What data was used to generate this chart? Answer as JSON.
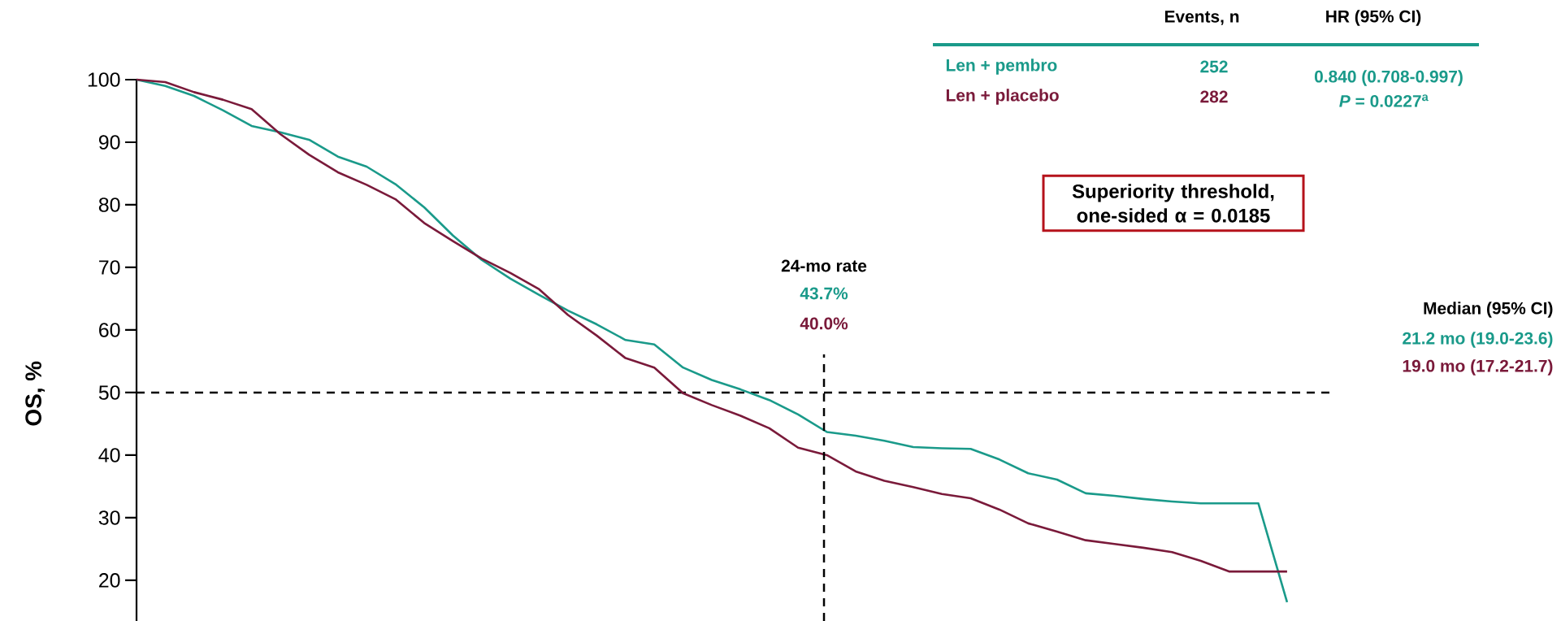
{
  "chart_data": {
    "type": "line",
    "ylabel": "OS, %",
    "categories": [
      null,
      null,
      null,
      null,
      null,
      null,
      null,
      null,
      null,
      null,
      null,
      null,
      null,
      null,
      null,
      null,
      null,
      null,
      null,
      null,
      null,
      null,
      null,
      null,
      null,
      null,
      null,
      null,
      null,
      null,
      null,
      null,
      null,
      null,
      null,
      null,
      null,
      null,
      null,
      null,
      null
    ],
    "ylim": [
      13.5,
      100
    ],
    "yticks": [
      20,
      30,
      40,
      50,
      60,
      70,
      80,
      90,
      100
    ],
    "tick_labels": "y",
    "series": [
      {
        "name": "Len + pembro",
        "color": "#1a9a8a",
        "values": [
          100,
          99.0,
          97.4,
          95.1,
          92.6,
          91.6,
          90.4,
          87.7,
          86.1,
          83.3,
          79.6,
          75.1,
          71.2,
          68.2,
          65.6,
          63.1,
          60.9,
          58.4,
          57.7,
          54.0,
          52.0,
          50.5,
          48.8,
          46.5,
          43.7,
          43.1,
          42.3,
          41.3,
          41.1,
          41.0,
          39.3,
          37.1,
          36.1,
          33.9,
          33.5,
          33.0,
          32.6,
          32.3,
          32.3,
          32.3,
          16.5
        ]
      },
      {
        "name": "Len + placebo",
        "color": "#7a1a3a",
        "values": [
          100,
          99.6,
          98.0,
          96.8,
          95.3,
          91.3,
          88.0,
          85.2,
          83.2,
          80.9,
          77.1,
          74.2,
          71.4,
          69.1,
          66.5,
          62.4,
          59.1,
          55.5,
          54.0,
          49.9,
          48.0,
          46.3,
          44.3,
          41.2,
          40.0,
          37.4,
          35.9,
          34.9,
          33.8,
          33.1,
          31.3,
          29.1,
          27.8,
          26.4,
          25.8,
          25.2,
          24.5,
          23.1,
          21.4,
          21.4,
          21.4
        ]
      }
    ],
    "ref_lines": [
      {
        "axis": "y",
        "value": 50,
        "line_style": "dashed"
      }
    ],
    "annotations": [
      "24-mo rate",
      "Events, n",
      "HR (95% CI)",
      "252",
      "282",
      "0.840 (0.708-0.997)",
      "*P* = 0.0227$^{a}$",
      "Superiority threshold, one-sided α = 0.0185",
      "43.7%",
      "40.0%",
      "Median (95% CI)",
      "21.2 mo (19.0-23.6)",
      "19.0 mo (17.2-21.7)"
    ]
  }
}
